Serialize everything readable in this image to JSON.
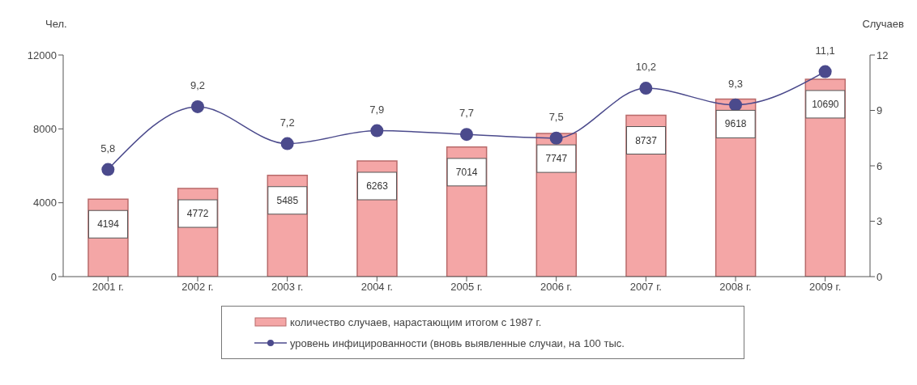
{
  "chart_data": {
    "type": "bar",
    "categories": [
      "2001 г.",
      "2002 г.",
      "2003 г.",
      "2004 г.",
      "2005 г.",
      "2006 г.",
      "2007 г.",
      "2008 г.",
      "2009 г."
    ],
    "ylabel": "Чел.",
    "y2label": "Случаев",
    "series": [
      {
        "name": "количество случаев, нарастающим итогом с 1987 г.",
        "color": "#f4a6a6",
        "values": [
          4194,
          4772,
          5485,
          6263,
          7014,
          7747,
          8737,
          9618,
          10690
        ],
        "value_labels": [
          "4194",
          "4772",
          "5485",
          "6263",
          "7014",
          "7747",
          "8737",
          "9618",
          "10690"
        ]
      },
      {
        "name": "уровень инфицированности (вновь выявленные случаи, на 100 тыс.",
        "type": "line",
        "axis": "y2",
        "color": "#4b4a8c",
        "values": [
          5.8,
          9.2,
          7.2,
          7.9,
          7.7,
          7.5,
          10.2,
          9.3,
          11.1
        ],
        "value_labels": [
          "5,8",
          "9,2",
          "7,2",
          "7,9",
          "7,7",
          "7,5",
          "10,2",
          "9,3",
          "11,1"
        ]
      }
    ],
    "ylim": [
      0,
      12000
    ],
    "yticks": [
      0,
      4000,
      8000,
      12000
    ],
    "y2lim": [
      0,
      12
    ],
    "y2ticks": [
      0,
      3,
      6,
      9,
      12
    ],
    "grid": false,
    "legend": "bottom",
    "marker": "circle",
    "line_style": "solid"
  }
}
